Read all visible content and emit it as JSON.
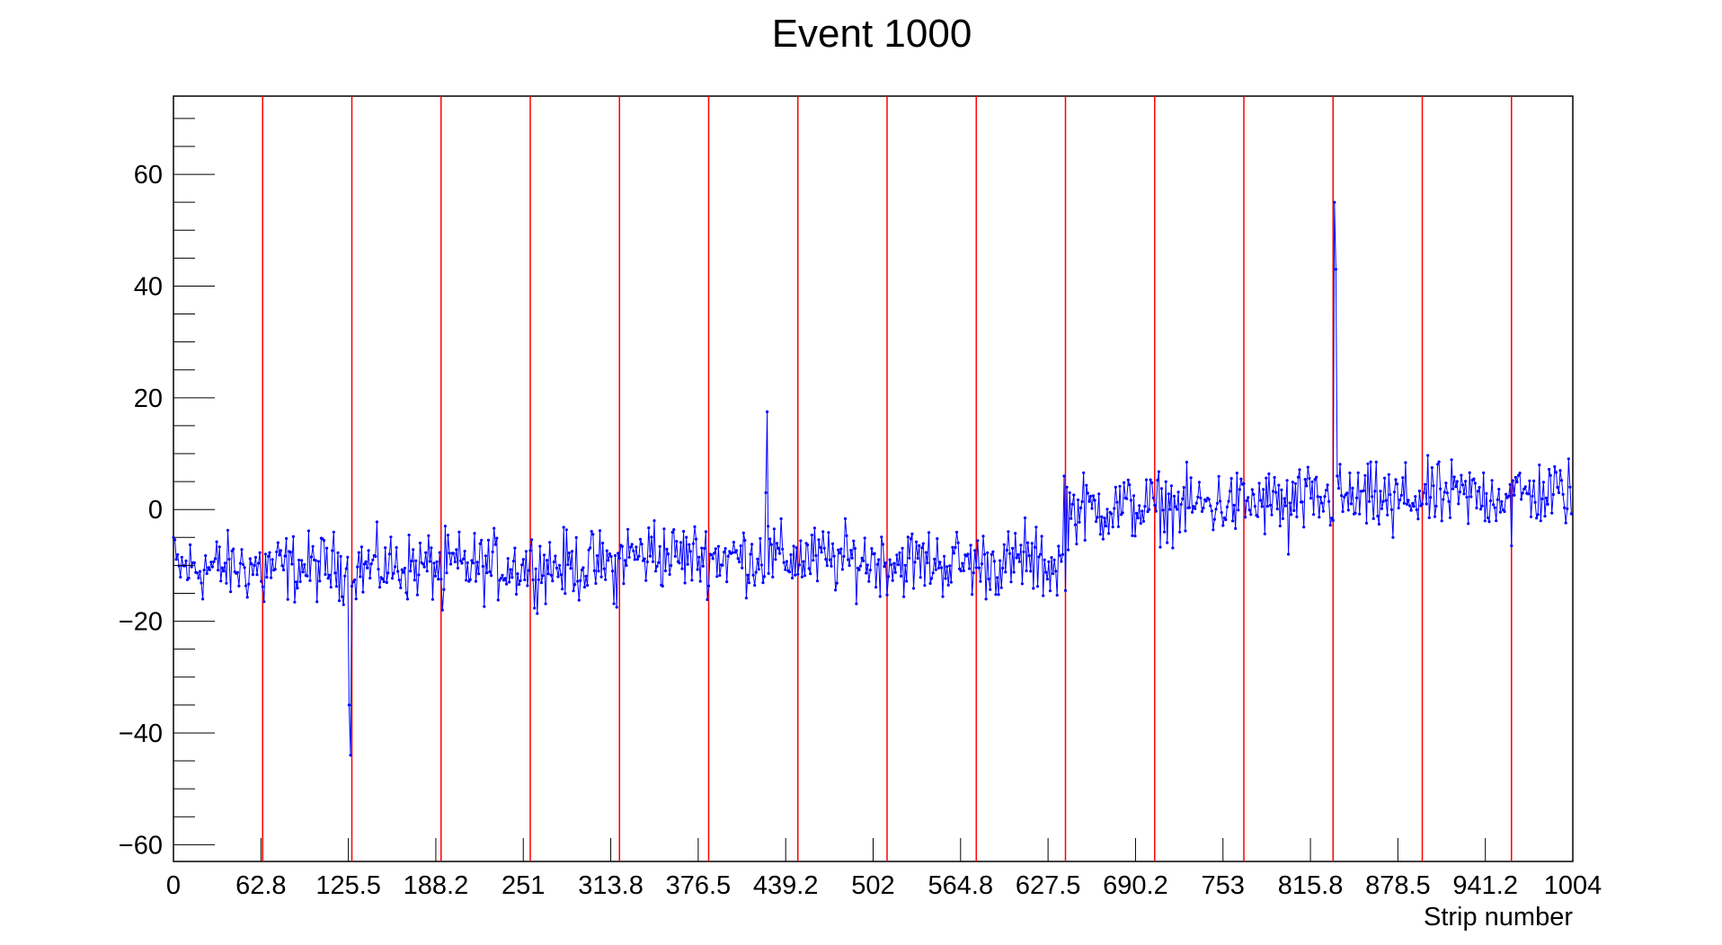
{
  "chart_data": {
    "type": "line",
    "title": "Event 1000",
    "xlabel": "Strip number",
    "ylabel": "",
    "xlim": [
      0,
      1004
    ],
    "ylim": [
      -63,
      74
    ],
    "xticks": [
      "0",
      "62.8",
      "125.5",
      "188.2",
      "251",
      "313.8",
      "376.5",
      "439.2",
      "502",
      "564.8",
      "627.5",
      "690.2",
      "753",
      "815.8",
      "878.5",
      "941.2",
      "1004"
    ],
    "yticks": [
      "60",
      "40",
      "20",
      "0",
      "−20",
      "−40",
      "−60"
    ],
    "ytick_values": [
      60,
      40,
      20,
      0,
      -20,
      -40,
      -60
    ],
    "grid": false,
    "colors": {
      "series": "#0000ff",
      "boundaries": "#ff0000"
    },
    "boundaries": [
      64,
      128,
      192,
      256,
      320,
      384,
      448,
      512,
      576,
      640,
      704,
      768,
      832,
      896,
      960
    ],
    "series": [
      {
        "baseline_segments": [
          {
            "x_start": 0,
            "x_end": 320,
            "mean_start": -10.5,
            "mean_end": -10
          },
          {
            "x_start": 320,
            "x_end": 640,
            "mean_start": -8,
            "mean_end": -10
          },
          {
            "x_start": 640,
            "x_end": 1004,
            "mean_start": 0,
            "mean_end": 3
          }
        ],
        "noise_amplitude": 3,
        "spikes": [
          {
            "x": 126,
            "y": -35
          },
          {
            "x": 127,
            "y": -44
          },
          {
            "x": 425,
            "y": 3
          },
          {
            "x": 426,
            "y": 17.5
          },
          {
            "x": 426.6,
            "y": -3
          },
          {
            "x": 833,
            "y": 55
          },
          {
            "x": 834,
            "y": 43
          },
          {
            "x": 835,
            "y": 6
          },
          {
            "x": 0,
            "y": -5
          },
          {
            "x": 639,
            "y": 6
          },
          {
            "x": 640,
            "y": -14.5
          },
          {
            "x": 65,
            "y": -16.5
          },
          {
            "x": 193,
            "y": -18
          },
          {
            "x": 318,
            "y": -17.5
          },
          {
            "x": 345,
            "y": -2
          },
          {
            "x": 611,
            "y": -1.5
          },
          {
            "x": 960,
            "y": -6.5
          },
          {
            "x": 800,
            "y": -8
          },
          {
            "x": 875,
            "y": -5
          }
        ]
      }
    ]
  }
}
